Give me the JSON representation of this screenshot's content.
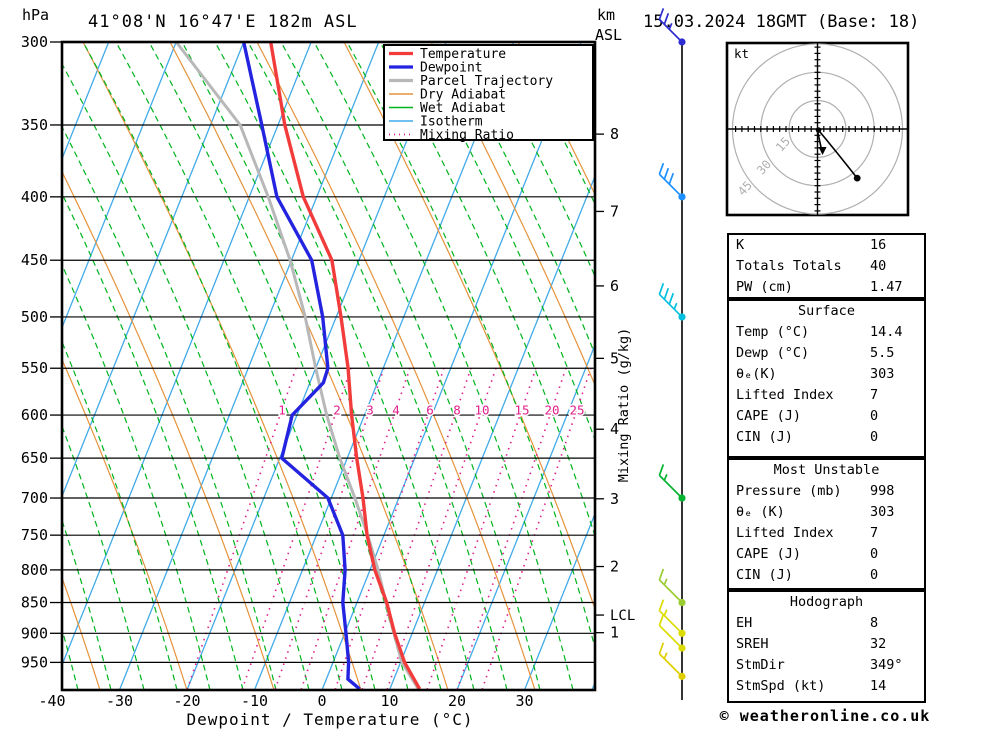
{
  "header": {
    "pressure_unit": "hPa",
    "title": "41°08'N 16°47'E 182m ASL",
    "km_unit": "km",
    "asl_unit": "ASL",
    "datetime": "15.03.2024 18GMT (Base: 18)"
  },
  "footer": {
    "xlabel": "Dewpoint / Temperature (°C)",
    "copyright": "© weatheronline.co.uk"
  },
  "colors": {
    "temperature": "#f23b3b",
    "dewpoint": "#2424e0",
    "parcel": "#b8b8b8",
    "dry_adiabat": "#e5933b",
    "wet_adiabat": "#00b41e",
    "isotherm": "#41aae8",
    "mixing_ratio": "#e01e8c",
    "axis": "#000000",
    "hodograph_rings": "#b0b0b0"
  },
  "legend": [
    {
      "label": "Temperature",
      "color_key": "temperature",
      "width": 3.2,
      "dash": ""
    },
    {
      "label": "Dewpoint",
      "color_key": "dewpoint",
      "width": 3.2,
      "dash": ""
    },
    {
      "label": "Parcel Trajectory",
      "color_key": "parcel",
      "width": 3.2,
      "dash": ""
    },
    {
      "label": "Dry Adiabat",
      "color_key": "dry_adiabat",
      "width": 1.5,
      "dash": ""
    },
    {
      "label": "Wet Adiabat",
      "color_key": "wet_adiabat",
      "width": 1.5,
      "dash": ""
    },
    {
      "label": "Isotherm",
      "color_key": "isotherm",
      "width": 1.5,
      "dash": ""
    },
    {
      "label": "Mixing Ratio",
      "color_key": "mixing_ratio",
      "width": 1.8,
      "dash": "1 4"
    }
  ],
  "chart_data": {
    "type": "skewt_log_p_sounding",
    "pressure_ticks_hpa": [
      300,
      350,
      400,
      450,
      500,
      550,
      600,
      650,
      700,
      750,
      800,
      850,
      900,
      950
    ],
    "pressure_range_hpa": [
      300,
      1000
    ],
    "temp_ticks_c": [
      -40,
      -30,
      -20,
      -10,
      0,
      10,
      20,
      30
    ],
    "isotherm_step_c": 10,
    "km_asl_ticks": [
      {
        "km": 8,
        "hpa": 356
      },
      {
        "km": 7,
        "hpa": 411
      },
      {
        "km": 6,
        "hpa": 472
      },
      {
        "km": 5,
        "hpa": 540
      },
      {
        "km": 4,
        "hpa": 616
      },
      {
        "km": 3,
        "hpa": 701
      },
      {
        "km": 2,
        "hpa": 795
      },
      {
        "km": 1,
        "hpa": 899
      }
    ],
    "lcl": {
      "label": "LCL",
      "hpa": 870
    },
    "mixing_ratio_labels": {
      "values": [
        1,
        2,
        3,
        4,
        6,
        8,
        10,
        15,
        20,
        25
      ],
      "anchor_x": [
        282,
        337,
        370,
        396,
        430,
        457,
        482,
        522,
        552,
        577
      ],
      "label_row_hpa": 595
    },
    "temperature_profile_p_t": [
      [
        300,
        -46
      ],
      [
        350,
        -39
      ],
      [
        400,
        -32
      ],
      [
        450,
        -24
      ],
      [
        500,
        -19.3
      ],
      [
        550,
        -15.2
      ],
      [
        600,
        -11.9
      ],
      [
        650,
        -8.6
      ],
      [
        700,
        -5.3
      ],
      [
        750,
        -2.5
      ],
      [
        800,
        0.7
      ],
      [
        850,
        4.4
      ],
      [
        900,
        7.4
      ],
      [
        950,
        10.6
      ],
      [
        998,
        14.4
      ]
    ],
    "dewpoint_profile_p_t": [
      [
        300,
        -50
      ],
      [
        350,
        -42.4
      ],
      [
        400,
        -35.9
      ],
      [
        450,
        -27
      ],
      [
        500,
        -22
      ],
      [
        550,
        -18.2
      ],
      [
        565,
        -18.0
      ],
      [
        600,
        -20.7
      ],
      [
        650,
        -19.7
      ],
      [
        700,
        -10.5
      ],
      [
        750,
        -6.1
      ],
      [
        800,
        -3.7
      ],
      [
        850,
        -2.1
      ],
      [
        900,
        0.2
      ],
      [
        950,
        2.3
      ],
      [
        980,
        3.2
      ],
      [
        998,
        5.5
      ]
    ],
    "parcel_profile_p_t": [
      [
        300,
        -60
      ],
      [
        350,
        -45.6
      ],
      [
        400,
        -37.2
      ],
      [
        450,
        -30.2
      ],
      [
        500,
        -24.6
      ],
      [
        550,
        -20
      ],
      [
        600,
        -15.6
      ],
      [
        650,
        -11.1
      ],
      [
        700,
        -6.5
      ],
      [
        750,
        -2.4
      ],
      [
        800,
        1.2
      ],
      [
        850,
        4.3
      ],
      [
        900,
        7.3
      ],
      [
        950,
        10.2
      ],
      [
        998,
        14.2
      ]
    ],
    "wind_barbs": [
      {
        "hpa": 300,
        "color": "#2d2dd2",
        "full": 2,
        "half": 1
      },
      {
        "hpa": 400,
        "color": "#1e90ff",
        "full": 3,
        "half": 0
      },
      {
        "hpa": 500,
        "color": "#00bfdf",
        "full": 3,
        "half": 1
      },
      {
        "hpa": 700,
        "color": "#00b432",
        "full": 1,
        "half": 1
      },
      {
        "hpa": 850,
        "color": "#9acd32",
        "full": 1,
        "half": 1
      },
      {
        "hpa": 900,
        "color": "#dcdc00",
        "full": 1,
        "half": 1
      },
      {
        "hpa": 925,
        "color": "#dcdc00",
        "full": 1,
        "half": 0
      },
      {
        "hpa": 975,
        "color": "#e0ce00",
        "full": 1,
        "half": 1
      }
    ]
  },
  "hodograph": {
    "unit_label": "kt",
    "ring_values_kt": [
      15,
      30,
      45
    ],
    "trace_u_v_kt": [
      [
        2,
        -2
      ],
      [
        10,
        -12
      ],
      [
        21,
        -26
      ]
    ],
    "storm_motion": {
      "dir_deg": 349,
      "speed_kt": 14
    }
  },
  "tables": [
    {
      "header": "",
      "rows": [
        [
          "K",
          "16"
        ],
        [
          "Totals Totals",
          "40"
        ],
        [
          "PW (cm)",
          "1.47"
        ]
      ]
    },
    {
      "header": "Surface",
      "rows": [
        [
          "Temp (°C)",
          "14.4"
        ],
        [
          "Dewp (°C)",
          "5.5"
        ],
        [
          "θₑ(K)",
          "303"
        ],
        [
          "Lifted Index",
          "7"
        ],
        [
          "CAPE (J)",
          "0"
        ],
        [
          "CIN (J)",
          "0"
        ]
      ]
    },
    {
      "header": "Most Unstable",
      "rows": [
        [
          "Pressure (mb)",
          "998"
        ],
        [
          "θₑ (K)",
          "303"
        ],
        [
          "Lifted Index",
          "7"
        ],
        [
          "CAPE (J)",
          "0"
        ],
        [
          "CIN (J)",
          "0"
        ]
      ]
    },
    {
      "header": "Hodograph",
      "rows": [
        [
          "EH",
          "8"
        ],
        [
          "SREH",
          "32"
        ],
        [
          "StmDir",
          "349°"
        ],
        [
          "StmSpd (kt)",
          "14"
        ]
      ]
    }
  ],
  "right_axis_label": "Mixing Ratio (g/kg)"
}
